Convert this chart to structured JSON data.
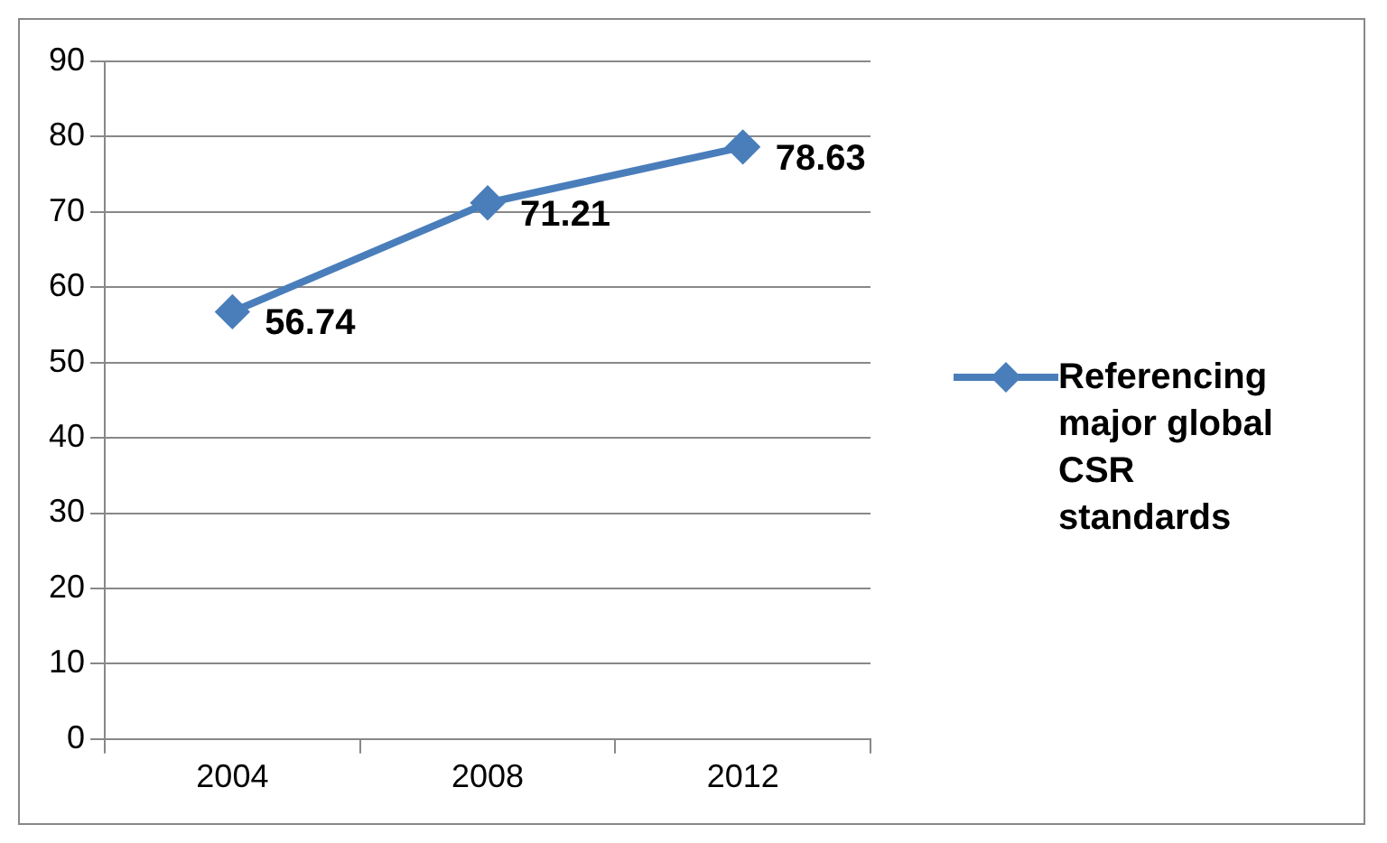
{
  "chart_data": {
    "type": "line",
    "categories": [
      "2004",
      "2008",
      "2012"
    ],
    "series": [
      {
        "name": "Referencing major global CSR standards",
        "color": "#4a7ebb",
        "values": [
          56.74,
          71.21,
          78.63
        ]
      }
    ],
    "ylim": [
      0,
      90
    ],
    "yticks": [
      0,
      10,
      20,
      30,
      40,
      50,
      60,
      70,
      80,
      90
    ],
    "grid": "y",
    "legend": "right",
    "marker": "diamond",
    "line_style": "solid",
    "data_labels": true
  }
}
